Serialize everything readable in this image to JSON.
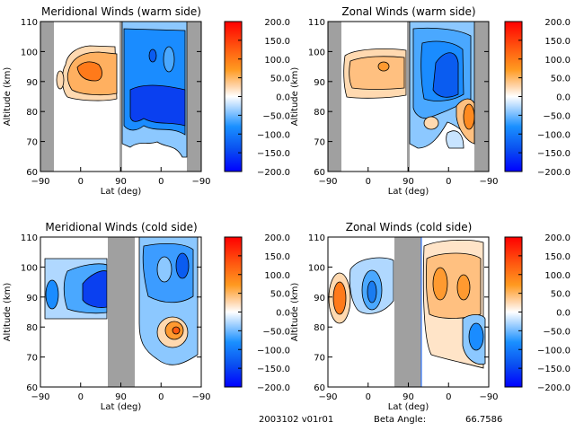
{
  "colors": {
    "gap": "#a0a0a0",
    "scale": [
      "#0000ff",
      "#0a5cf0",
      "#1a8cff",
      "#8cc8ff",
      "#ffffff",
      "#ffd9b0",
      "#ff9a30",
      "#ff5a10",
      "#ff0000"
    ]
  },
  "footer": {
    "date_version": "2003102 v01r01",
    "beta_label": "Beta Angle:",
    "beta_value": "66.7586"
  },
  "chart_data": [
    {
      "type": "heatmap",
      "title": "Meridional Winds (warm side)",
      "xlabel": "Lat (deg)",
      "ylabel": "Altitude (km)",
      "xticks": [
        "-90",
        "0",
        "90",
        "0",
        "-90"
      ],
      "yticks": [
        "60",
        "70",
        "80",
        "90",
        "100",
        "110"
      ],
      "ylim": [
        60,
        110
      ],
      "colorbar": {
        "ticks": [
          "200.0",
          "150.0",
          "100.0",
          "50.0",
          "0.0",
          "-50.0",
          "-100.0",
          "-150.0",
          "-200.0"
        ],
        "range": [
          -200,
          200
        ]
      },
      "features": [
        {
          "sign": "positive",
          "peak": 110,
          "lat_seg": "left",
          "center_alt": 93
        },
        {
          "sign": "negative",
          "peak": -200,
          "lat_seg": "right",
          "center_alt": 85
        }
      ]
    },
    {
      "type": "heatmap",
      "title": "Zonal Winds (warm side)",
      "xlabel": "Lat (deg)",
      "ylabel": "Altitude (km)",
      "xticks": [
        "-90",
        "0",
        "90",
        "0",
        "-90"
      ],
      "yticks": [
        "60",
        "70",
        "80",
        "90",
        "100",
        "110"
      ],
      "ylim": [
        60,
        110
      ],
      "colorbar": {
        "ticks": [
          "200.0",
          "150.0",
          "100.0",
          "50.0",
          "0.0",
          "-50.0",
          "-100.0",
          "-150.0",
          "-200.0"
        ],
        "range": [
          -200,
          200
        ]
      },
      "features": [
        {
          "sign": "positive",
          "peak": 60,
          "lat_seg": "left",
          "center_alt": 93
        },
        {
          "sign": "negative",
          "peak": -160,
          "lat_seg": "right",
          "center_alt": 92
        },
        {
          "sign": "positive",
          "peak": 110,
          "lat_seg": "right",
          "center_alt": 77
        }
      ]
    },
    {
      "type": "heatmap",
      "title": "Meridional Winds (cold side)",
      "xlabel": "Lat (deg)",
      "ylabel": "Altitude (km)",
      "xticks": [
        "-90",
        "0",
        "90",
        "0",
        "-90"
      ],
      "yticks": [
        "60",
        "70",
        "80",
        "90",
        "100",
        "110"
      ],
      "ylim": [
        60,
        110
      ],
      "colorbar": {
        "ticks": [
          "200.0",
          "150.0",
          "100.0",
          "50.0",
          "0.0",
          "-50.0",
          "-100.0",
          "-150.0",
          "-200.0"
        ],
        "range": [
          -200,
          200
        ]
      },
      "features": [
        {
          "sign": "negative",
          "peak": -200,
          "lat_seg": "left",
          "center_alt": 91
        },
        {
          "sign": "negative",
          "peak": -130,
          "lat_seg": "right",
          "center_alt": 97
        },
        {
          "sign": "positive",
          "peak": 130,
          "lat_seg": "right",
          "center_alt": 78
        }
      ]
    },
    {
      "type": "heatmap",
      "title": "Zonal Winds (cold side)",
      "xlabel": "Lat (deg)",
      "ylabel": "Altitude (km)",
      "xticks": [
        "-90",
        "0",
        "90",
        "0",
        "-90"
      ],
      "yticks": [
        "60",
        "70",
        "80",
        "90",
        "100",
        "110"
      ],
      "ylim": [
        60,
        110
      ],
      "colorbar": {
        "ticks": [
          "200.0",
          "150.0",
          "100.0",
          "50.0",
          "0.0",
          "-50.0",
          "-100.0",
          "-150.0",
          "-200.0"
        ],
        "range": [
          -200,
          200
        ]
      },
      "features": [
        {
          "sign": "positive",
          "peak": 150,
          "lat_seg": "left",
          "center_alt": 90
        },
        {
          "sign": "negative",
          "peak": -120,
          "lat_seg": "left",
          "center_alt": 92
        },
        {
          "sign": "positive",
          "peak": 90,
          "lat_seg": "right",
          "center_alt": 95
        },
        {
          "sign": "negative",
          "peak": -130,
          "lat_seg": "right",
          "center_alt": 77
        }
      ]
    }
  ]
}
